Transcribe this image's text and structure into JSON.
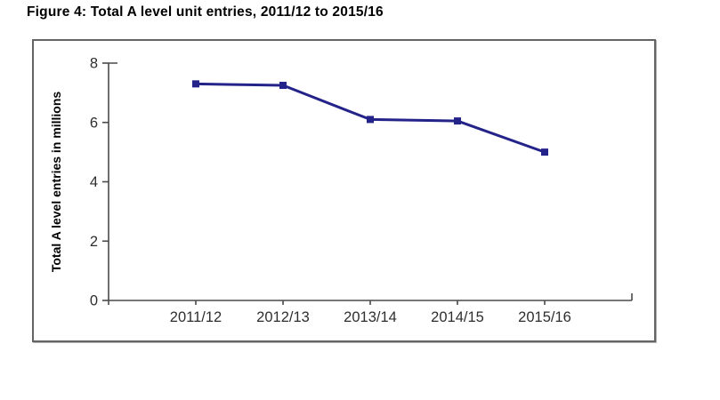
{
  "figure": {
    "title": "Figure 4: Total A level unit entries, 2011/12 to 2015/16"
  },
  "colors": {
    "line": "#23238a",
    "marker": "#23238a",
    "axis": "#4a4a4a",
    "tick_label": "#2e2e2e",
    "ylabel_text": "#000000",
    "frame_border": "#646464",
    "background": "#ffffff",
    "title_text": "#000000"
  },
  "chart_data": {
    "type": "line",
    "categories": [
      "2011/12",
      "2012/13",
      "2013/14",
      "2014/15",
      "2015/16"
    ],
    "values": [
      7.3,
      7.25,
      6.1,
      6.05,
      5.0
    ],
    "series_name": "Total A level unit entries",
    "title": "",
    "xlabel": "",
    "ylabel": "Total A level entries in millions",
    "ylim": [
      0,
      8
    ],
    "yticks": [
      0,
      2,
      4,
      6,
      8
    ],
    "grid": false,
    "legend": false,
    "marker_shape": "square"
  }
}
